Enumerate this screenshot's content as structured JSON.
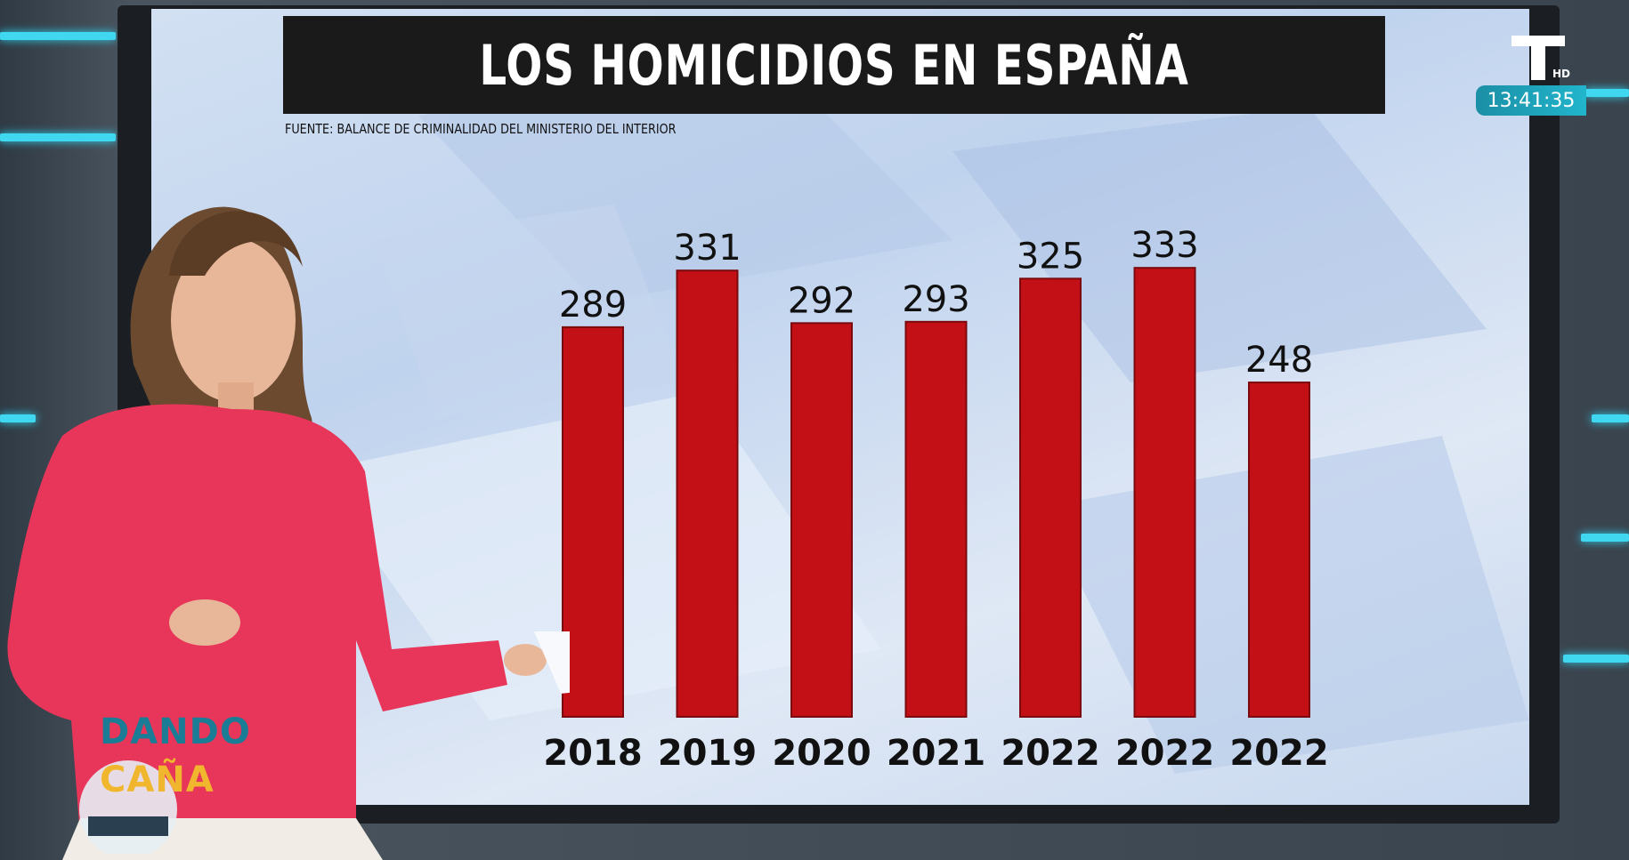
{
  "broadcast": {
    "channel_logo": "T",
    "hd_label": "HD",
    "clock": "13:41:35",
    "show_logo_line1": "DANDO",
    "show_logo_line2": "CAÑA"
  },
  "colors": {
    "bar": "#c21016",
    "title_bg": "#1a1a1a",
    "accent": "#3fd8f0"
  },
  "chart_data": {
    "type": "bar",
    "title": "LOS HOMICIDIOS EN ESPAÑA",
    "subtitle": "FUENTE: BALANCE DE CRIMINALIDAD DEL MINISTERIO DEL INTERIOR",
    "categories": [
      "2018",
      "2019",
      "2020",
      "2021",
      "2022",
      "2022",
      "2022"
    ],
    "values": [
      289,
      331,
      292,
      293,
      325,
      333,
      248
    ],
    "xlabel": "",
    "ylabel": "",
    "grid": false,
    "legend": "none"
  }
}
